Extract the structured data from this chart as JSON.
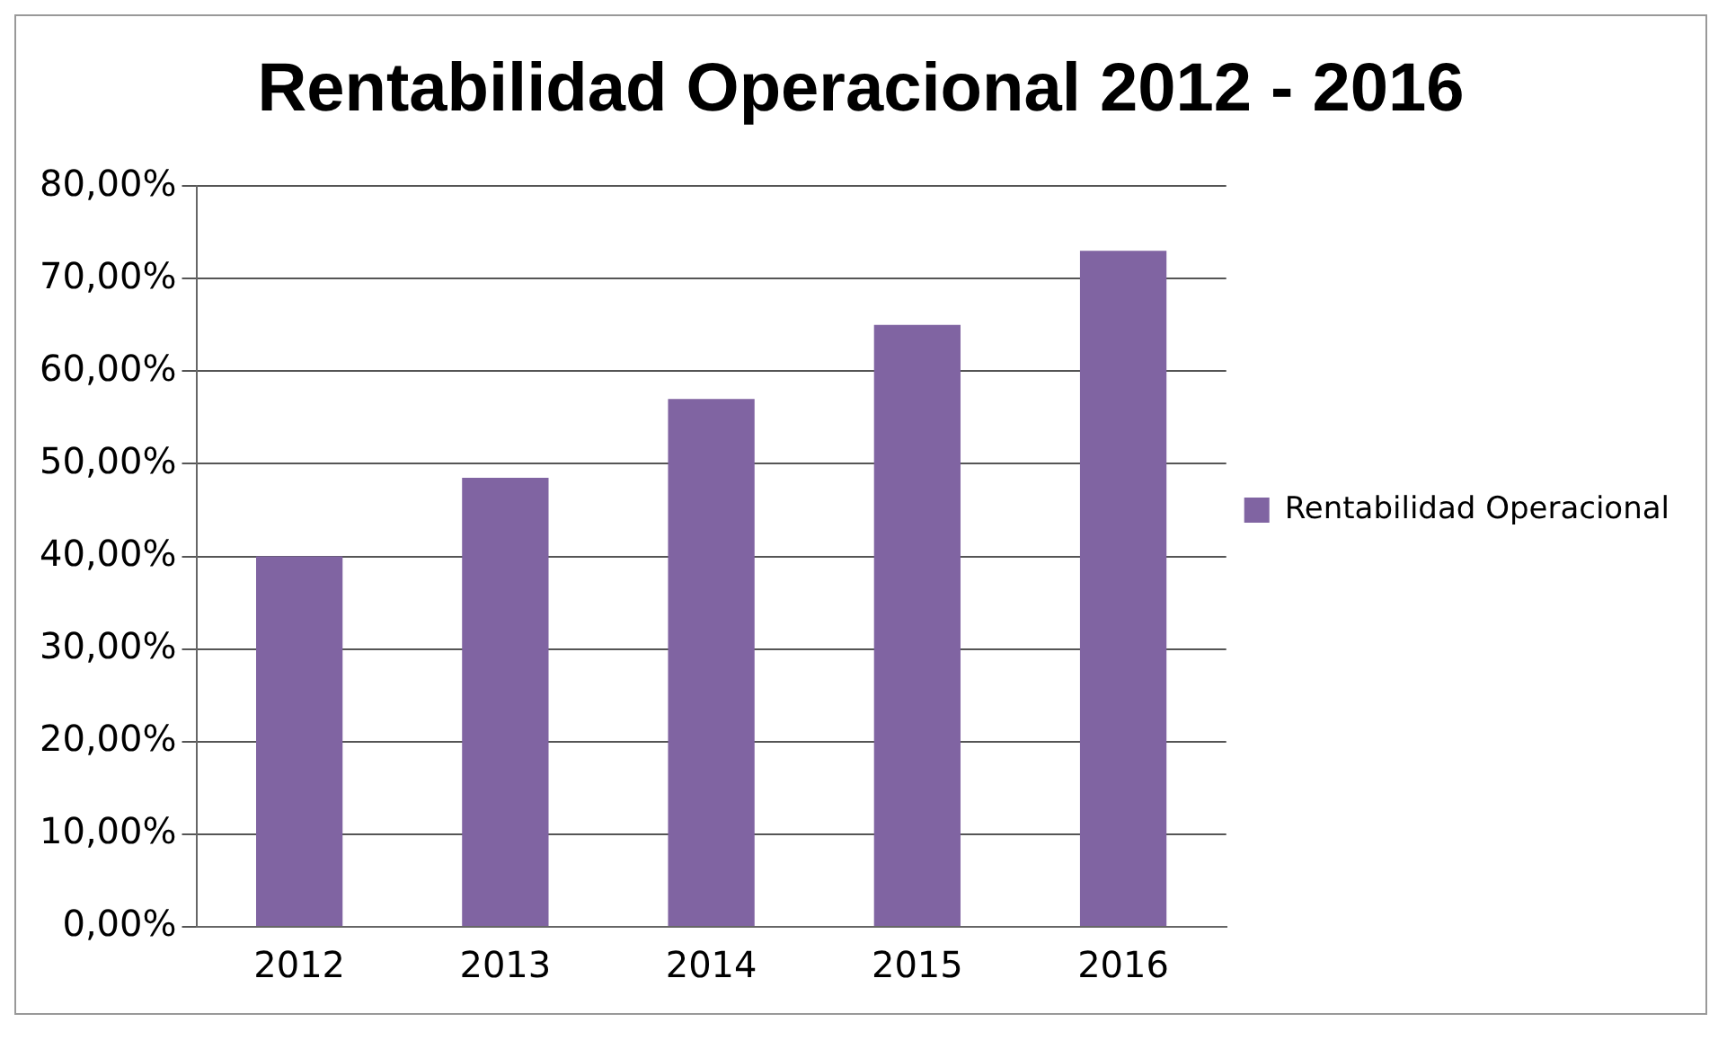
{
  "chart_data": {
    "type": "bar",
    "title": "Rentabilidad Operacional 2012 - 2016",
    "categories": [
      "2012",
      "2013",
      "2014",
      "2015",
      "2016"
    ],
    "series": [
      {
        "name": "Rentabilidad Operacional",
        "color": "#8064a2",
        "values": [
          40,
          48.5,
          57,
          65,
          73
        ]
      }
    ],
    "ylim": [
      0,
      80
    ],
    "yticks": [
      {
        "value": 0,
        "label": "0,00%"
      },
      {
        "value": 10,
        "label": "10,00%"
      },
      {
        "value": 20,
        "label": "20,00%"
      },
      {
        "value": 30,
        "label": "30,00%"
      },
      {
        "value": 40,
        "label": "40,00%"
      },
      {
        "value": 50,
        "label": "50,00%"
      },
      {
        "value": 60,
        "label": "60,00%"
      },
      {
        "value": 70,
        "label": "70,00%"
      },
      {
        "value": 80,
        "label": "80,00%"
      }
    ],
    "grid": "y",
    "legend": "right"
  }
}
